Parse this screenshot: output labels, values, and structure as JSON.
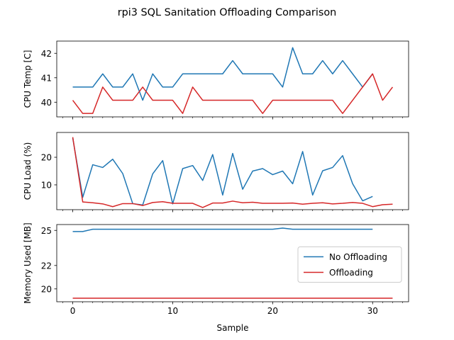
{
  "chart_data": {
    "type": "line",
    "title": "rpi3 SQL Sanitation Offloading Comparison",
    "xlabel": "Sample",
    "xlim": [
      -1.6,
      33.6
    ],
    "xticks": [
      0,
      10,
      20,
      30
    ],
    "legend": {
      "placement": "center-right",
      "in_panel": 2
    },
    "colors": {
      "No Offloading": "#1f77b4",
      "Offloading": "#d62728"
    },
    "panels": [
      {
        "ylabel": "CPU Temp [C]",
        "ylim": [
          39.4,
          42.5
        ],
        "yticks": [
          40,
          41,
          42
        ],
        "series": [
          {
            "name": "No Offloading",
            "x": [
              0,
              1,
              2,
              3,
              4,
              5,
              6,
              7,
              8,
              9,
              10,
              11,
              12,
              13,
              14,
              15,
              16,
              17,
              18,
              19,
              20,
              21,
              22,
              23,
              24,
              25,
              26,
              27,
              28,
              29,
              30
            ],
            "values": [
              40.62,
              40.62,
              40.62,
              41.16,
              40.62,
              40.62,
              41.16,
              40.08,
              41.16,
              40.62,
              40.62,
              41.16,
              41.16,
              41.16,
              41.16,
              41.16,
              41.7,
              41.16,
              41.16,
              41.16,
              41.16,
              40.62,
              42.23,
              41.16,
              41.16,
              41.7,
              41.16,
              41.7,
              41.16,
              40.62,
              41.16
            ]
          },
          {
            "name": "Offloading",
            "x": [
              0,
              1,
              2,
              3,
              4,
              5,
              6,
              7,
              8,
              9,
              10,
              11,
              12,
              13,
              14,
              15,
              16,
              17,
              18,
              19,
              20,
              21,
              22,
              23,
              24,
              25,
              26,
              27,
              28,
              29,
              30,
              31,
              32
            ],
            "values": [
              40.08,
              39.54,
              39.54,
              40.62,
              40.08,
              40.08,
              40.08,
              40.62,
              40.08,
              40.08,
              40.08,
              39.54,
              40.62,
              40.08,
              40.08,
              40.08,
              40.08,
              40.08,
              40.08,
              39.54,
              40.08,
              40.08,
              40.08,
              40.08,
              40.08,
              40.08,
              40.08,
              39.54,
              40.08,
              40.62,
              41.16,
              40.08,
              40.62
            ]
          }
        ]
      },
      {
        "ylabel": "CPU Load (%)",
        "ylim": [
          1,
          29
        ],
        "yticks": [
          10,
          20
        ],
        "series": [
          {
            "name": "No Offloading",
            "x": [
              0,
              1,
              2,
              3,
              4,
              5,
              6,
              7,
              8,
              9,
              10,
              11,
              12,
              13,
              14,
              15,
              16,
              17,
              18,
              19,
              20,
              21,
              22,
              23,
              24,
              25,
              26,
              27,
              28,
              29,
              30
            ],
            "values": [
              27,
              5.5,
              17.3,
              16.3,
              19.3,
              14.1,
              3.2,
              2.7,
              14,
              18.8,
              3.1,
              15.9,
              17,
              11.6,
              21,
              6.3,
              21.4,
              8.4,
              15,
              15.9,
              13.7,
              15,
              10.4,
              22.1,
              6.3,
              15.1,
              16.3,
              20.6,
              10.4,
              4.2,
              5.8
            ]
          },
          {
            "name": "Offloading",
            "x": [
              0,
              1,
              2,
              3,
              4,
              5,
              6,
              7,
              8,
              9,
              10,
              11,
              12,
              13,
              14,
              15,
              16,
              17,
              18,
              19,
              20,
              21,
              22,
              23,
              24,
              25,
              26,
              27,
              28,
              29,
              30,
              31,
              32
            ],
            "values": [
              27.3,
              3.8,
              3.5,
              3.1,
              2.1,
              3.2,
              3.2,
              2.5,
              3.6,
              3.9,
              3.3,
              3.3,
              3.3,
              1.8,
              3.4,
              3.4,
              4.1,
              3.5,
              3.7,
              3.3,
              3.3,
              3.3,
              3.4,
              3,
              3.3,
              3.5,
              3.1,
              3.3,
              3.6,
              3.3,
              2.1,
              2.8,
              3
            ]
          }
        ]
      },
      {
        "ylabel": "Memory Used [MB]",
        "ylim": [
          18.9,
          25.5
        ],
        "yticks": [
          20,
          22,
          25
        ],
        "series": [
          {
            "name": "No Offloading",
            "x": [
              0,
              1,
              2,
              3,
              4,
              5,
              6,
              7,
              8,
              9,
              10,
              11,
              12,
              13,
              14,
              15,
              16,
              17,
              18,
              19,
              20,
              21,
              22,
              23,
              24,
              25,
              26,
              27,
              28,
              29,
              30
            ],
            "values": [
              24.9,
              24.9,
              25.1,
              25.1,
              25.1,
              25.1,
              25.1,
              25.1,
              25.1,
              25.1,
              25.1,
              25.1,
              25.1,
              25.1,
              25.1,
              25.1,
              25.1,
              25.1,
              25.1,
              25.1,
              25.1,
              25.2,
              25.1,
              25.1,
              25.1,
              25.1,
              25.1,
              25.1,
              25.1,
              25.1,
              25.1
            ]
          },
          {
            "name": "Offloading",
            "x": [
              0,
              1,
              2,
              3,
              4,
              5,
              6,
              7,
              8,
              9,
              10,
              11,
              12,
              13,
              14,
              15,
              16,
              17,
              18,
              19,
              20,
              21,
              22,
              23,
              24,
              25,
              26,
              27,
              28,
              29,
              30,
              31,
              32
            ],
            "values": [
              19.2,
              19.2,
              19.2,
              19.2,
              19.2,
              19.2,
              19.2,
              19.2,
              19.2,
              19.2,
              19.2,
              19.2,
              19.2,
              19.2,
              19.2,
              19.2,
              19.2,
              19.2,
              19.2,
              19.2,
              19.2,
              19.2,
              19.2,
              19.2,
              19.2,
              19.2,
              19.2,
              19.2,
              19.2,
              19.2,
              19.2,
              19.2,
              19.2
            ]
          }
        ]
      }
    ]
  }
}
